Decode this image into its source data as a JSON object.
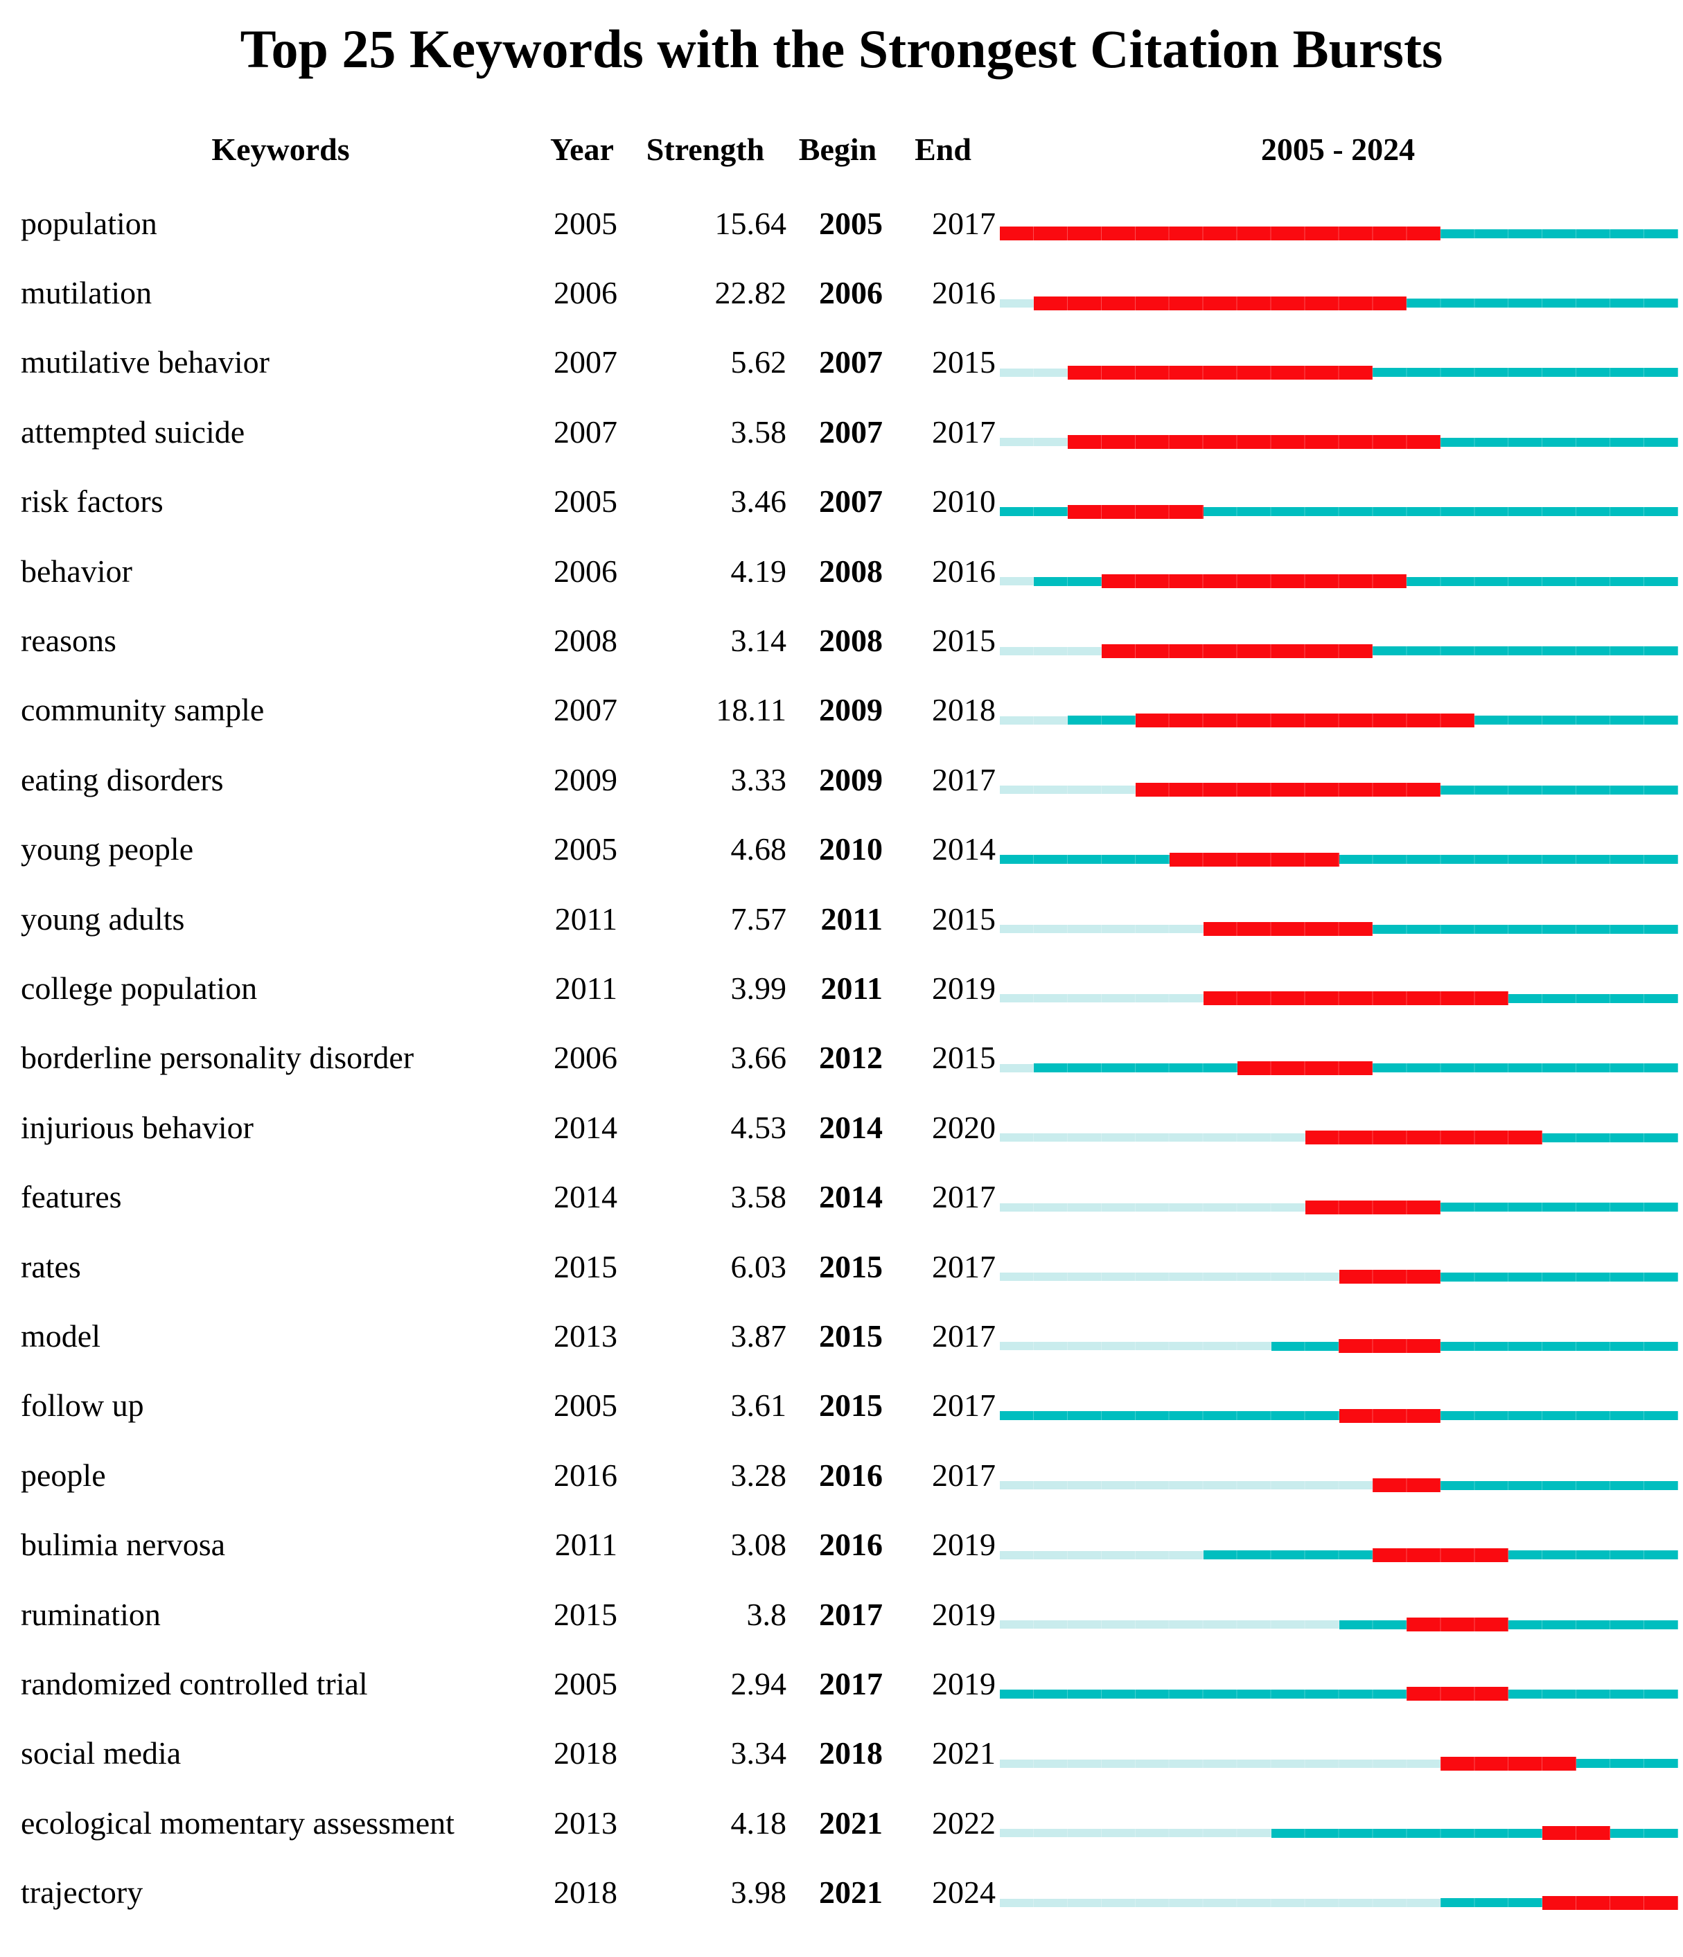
{
  "title": "Top 25 Keywords with the Strongest Citation Bursts",
  "columns": {
    "keywords": "Keywords",
    "year": "Year",
    "strength": "Strength",
    "begin": "Begin",
    "end": "End",
    "timeline": "2005 - 2024"
  },
  "chart_data": {
    "type": "bar",
    "orientation": "horizontal-burst-timeline",
    "title": "Top 25 Keywords with the Strongest Citation Bursts",
    "timeline_header": "2005 - 2024",
    "timeline_start": 2005,
    "timeline_end": 2024,
    "colors": {
      "burst": "#FA0A10",
      "active": "#00BEBF",
      "inactive": "#C9ECED"
    },
    "rows": [
      {
        "keyword": "population",
        "year": 2005,
        "strength": "15.64",
        "begin": 2005,
        "end": 2017
      },
      {
        "keyword": "mutilation",
        "year": 2006,
        "strength": "22.82",
        "begin": 2006,
        "end": 2016
      },
      {
        "keyword": "mutilative behavior",
        "year": 2007,
        "strength": "5.62",
        "begin": 2007,
        "end": 2015
      },
      {
        "keyword": "attempted suicide",
        "year": 2007,
        "strength": "3.58",
        "begin": 2007,
        "end": 2017
      },
      {
        "keyword": "risk factors",
        "year": 2005,
        "strength": "3.46",
        "begin": 2007,
        "end": 2010
      },
      {
        "keyword": "behavior",
        "year": 2006,
        "strength": "4.19",
        "begin": 2008,
        "end": 2016
      },
      {
        "keyword": "reasons",
        "year": 2008,
        "strength": "3.14",
        "begin": 2008,
        "end": 2015
      },
      {
        "keyword": "community sample",
        "year": 2007,
        "strength": "18.11",
        "begin": 2009,
        "end": 2018
      },
      {
        "keyword": "eating disorders",
        "year": 2009,
        "strength": "3.33",
        "begin": 2009,
        "end": 2017
      },
      {
        "keyword": "young people",
        "year": 2005,
        "strength": "4.68",
        "begin": 2010,
        "end": 2014
      },
      {
        "keyword": "young adults",
        "year": 2011,
        "strength": "7.57",
        "begin": 2011,
        "end": 2015
      },
      {
        "keyword": "college population",
        "year": 2011,
        "strength": "3.99",
        "begin": 2011,
        "end": 2019
      },
      {
        "keyword": "borderline personality disorder",
        "year": 2006,
        "strength": "3.66",
        "begin": 2012,
        "end": 2015
      },
      {
        "keyword": "injurious behavior",
        "year": 2014,
        "strength": "4.53",
        "begin": 2014,
        "end": 2020
      },
      {
        "keyword": "features",
        "year": 2014,
        "strength": "3.58",
        "begin": 2014,
        "end": 2017
      },
      {
        "keyword": "rates",
        "year": 2015,
        "strength": "6.03",
        "begin": 2015,
        "end": 2017
      },
      {
        "keyword": "model",
        "year": 2013,
        "strength": "3.87",
        "begin": 2015,
        "end": 2017
      },
      {
        "keyword": "follow up",
        "year": 2005,
        "strength": "3.61",
        "begin": 2015,
        "end": 2017
      },
      {
        "keyword": "people",
        "year": 2016,
        "strength": "3.28",
        "begin": 2016,
        "end": 2017
      },
      {
        "keyword": "bulimia nervosa",
        "year": 2011,
        "strength": "3.08",
        "begin": 2016,
        "end": 2019
      },
      {
        "keyword": "rumination",
        "year": 2015,
        "strength": "3.8",
        "begin": 2017,
        "end": 2019
      },
      {
        "keyword": "randomized controlled trial",
        "year": 2005,
        "strength": "2.94",
        "begin": 2017,
        "end": 2019
      },
      {
        "keyword": "social media",
        "year": 2018,
        "strength": "3.34",
        "begin": 2018,
        "end": 2021
      },
      {
        "keyword": "ecological momentary assessment",
        "year": 2013,
        "strength": "4.18",
        "begin": 2021,
        "end": 2022
      },
      {
        "keyword": "trajectory",
        "year": 2018,
        "strength": "3.98",
        "begin": 2021,
        "end": 2024
      }
    ]
  }
}
